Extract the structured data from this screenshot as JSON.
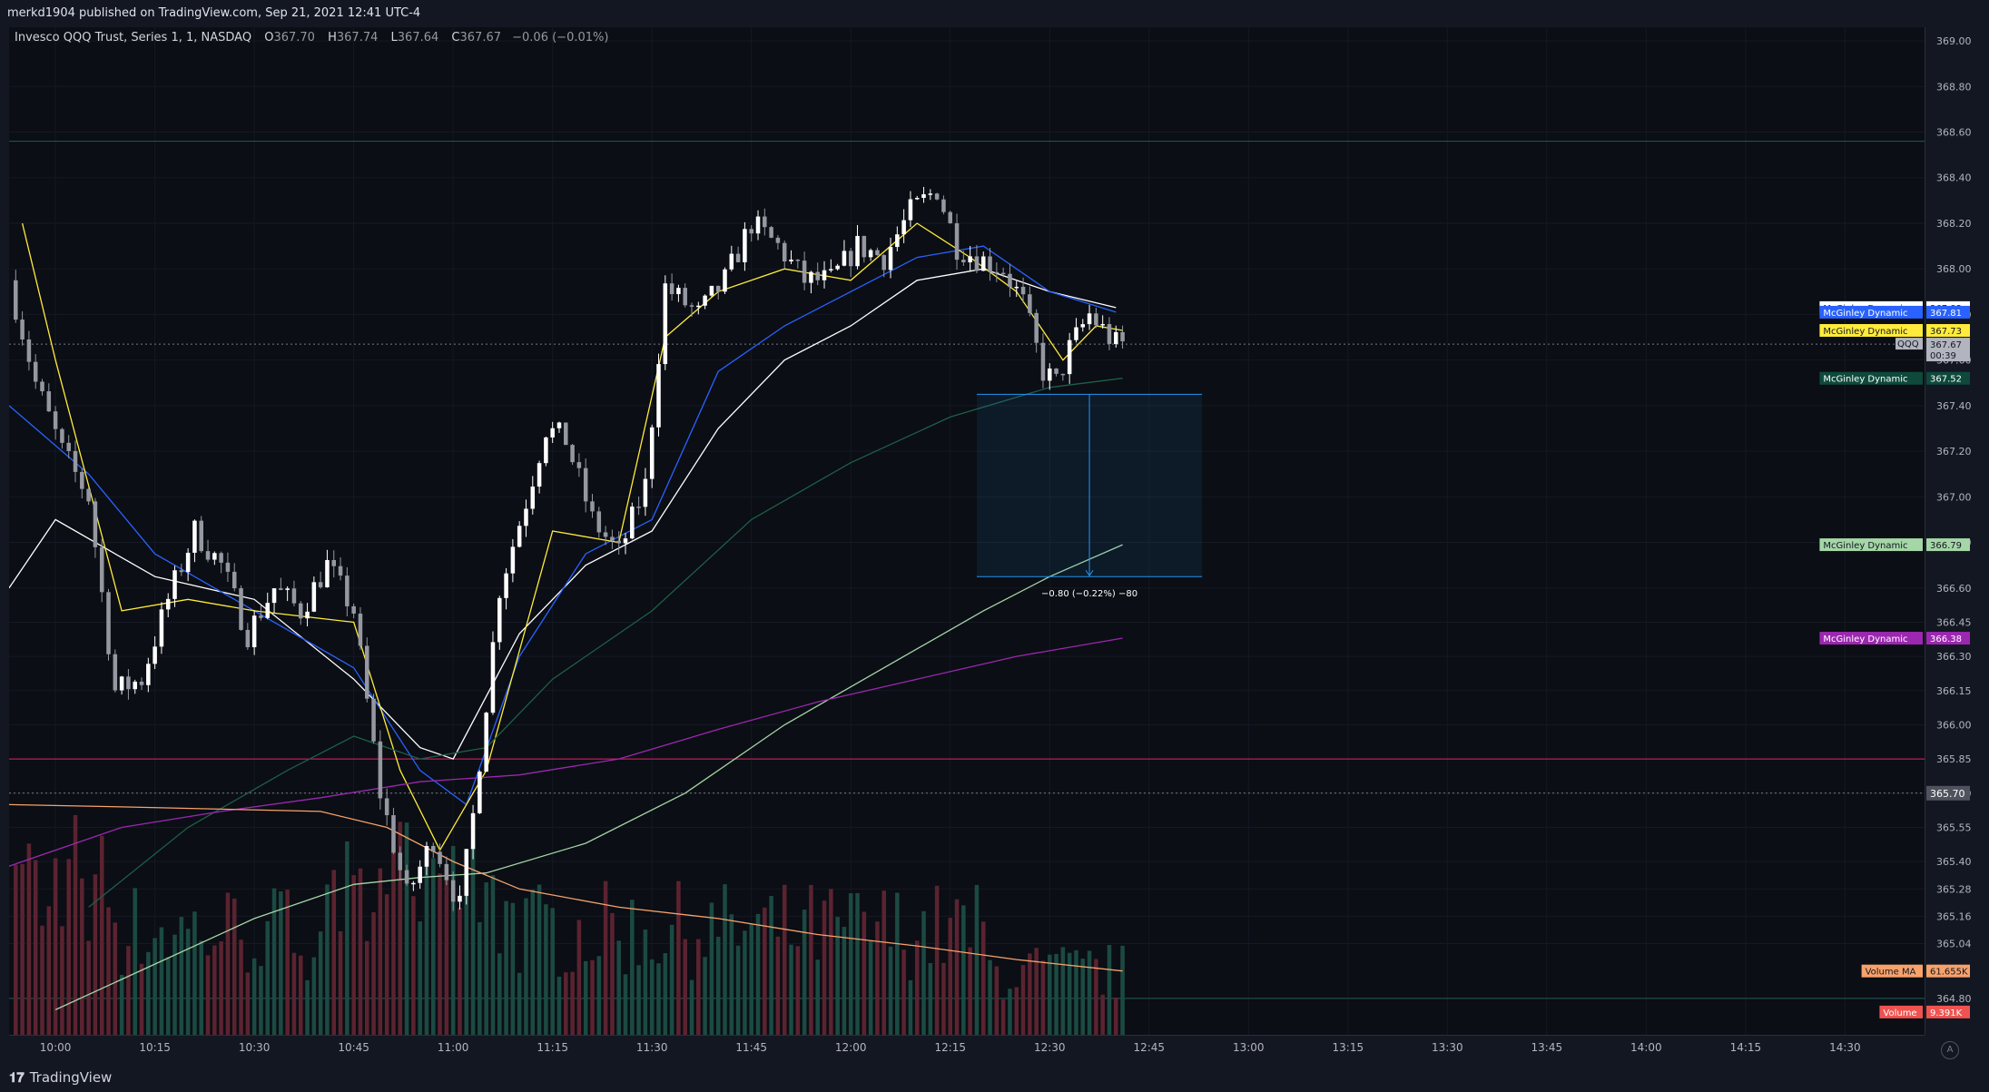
{
  "header": {
    "published": "merkd1904 published on TradingView.com, Sep 21, 2021 12:41 UTC-4"
  },
  "legend": {
    "symbol": "Invesco QQQ Trust, Series 1, 1, NASDAQ",
    "o_label": "O",
    "o_value": "367.70",
    "h_label": "H",
    "h_value": "367.74",
    "l_label": "L",
    "l_value": "367.64",
    "c_label": "C",
    "c_value": "367.67",
    "change": "−0.06 (−0.01%)"
  },
  "footer": {
    "brand": "TradingView",
    "auto_label": "A"
  },
  "colors": {
    "bg": "#0b0e14",
    "up": "#ffffff",
    "down": "#9598a1",
    "vol_up": "#26a69a",
    "vol_down": "#ef5350"
  },
  "chart_data": {
    "type": "candlestick",
    "title": "",
    "timeframe": "1 minute",
    "yaxis": {
      "min": 364.64,
      "max": 369.06,
      "ticks": [
        "369.00",
        "368.80",
        "368.60",
        "368.40",
        "368.20",
        "368.00",
        "367.80",
        "367.60",
        "367.40",
        "367.20",
        "367.00",
        "366.80",
        "366.60",
        "366.45",
        "366.30",
        "366.15",
        "366.00",
        "365.85",
        "365.70",
        "365.55",
        "365.40",
        "365.28",
        "365.16",
        "365.04",
        "364.80"
      ]
    },
    "xaxis": {
      "start": "09:53",
      "end": "14:42",
      "ticks": [
        "10:00",
        "10:15",
        "10:30",
        "10:45",
        "11:00",
        "11:15",
        "11:30",
        "11:45",
        "12:00",
        "12:15",
        "12:30",
        "12:45",
        "13:00",
        "13:15",
        "13:30",
        "13:45",
        "14:00",
        "14:15",
        "14:30"
      ]
    },
    "horizontal_lines": [
      {
        "price": 368.56,
        "color": "#1f5c54"
      },
      {
        "price": 365.85,
        "color": "#e91e63"
      },
      {
        "price": 364.8,
        "color": "#1f5c54"
      },
      {
        "price": 367.67,
        "style": "dotted",
        "color": "#787b86"
      },
      {
        "price": 365.7,
        "style": "dotted",
        "color": "#787b86"
      }
    ],
    "anchors": [
      [
        "09:54",
        367.95
      ],
      [
        "09:58",
        367.5
      ],
      [
        "10:02",
        367.2
      ],
      [
        "10:06",
        367.0
      ],
      [
        "10:10",
        366.15
      ],
      [
        "10:14",
        366.2
      ],
      [
        "10:18",
        366.55
      ],
      [
        "10:22",
        366.85
      ],
      [
        "10:26",
        366.7
      ],
      [
        "10:30",
        366.4
      ],
      [
        "10:34",
        366.6
      ],
      [
        "10:38",
        366.5
      ],
      [
        "10:42",
        366.7
      ],
      [
        "10:46",
        366.5
      ],
      [
        "10:50",
        365.7
      ],
      [
        "10:54",
        365.25
      ],
      [
        "10:58",
        365.5
      ],
      [
        "11:02",
        365.2
      ],
      [
        "11:04",
        365.6
      ],
      [
        "11:08",
        366.6
      ],
      [
        "11:12",
        366.98
      ],
      [
        "11:15",
        367.3
      ],
      [
        "11:18",
        367.25
      ],
      [
        "11:22",
        366.9
      ],
      [
        "11:26",
        366.75
      ],
      [
        "11:30",
        367.05
      ],
      [
        "11:33",
        367.92
      ],
      [
        "11:38",
        367.8
      ],
      [
        "11:42",
        367.95
      ],
      [
        "11:46",
        368.2
      ],
      [
        "11:50",
        368.1
      ],
      [
        "11:54",
        367.95
      ],
      [
        "11:58",
        367.95
      ],
      [
        "12:02",
        368.1
      ],
      [
        "12:06",
        368.05
      ],
      [
        "12:10",
        368.25
      ],
      [
        "12:14",
        368.35
      ],
      [
        "12:17",
        368.1
      ],
      [
        "12:20",
        368.05
      ],
      [
        "12:24",
        368.0
      ],
      [
        "12:27",
        367.85
      ],
      [
        "12:30",
        367.55
      ],
      [
        "12:32",
        367.5
      ],
      [
        "12:34",
        367.65
      ],
      [
        "12:37",
        367.8
      ],
      [
        "12:40",
        367.7
      ],
      [
        "12:41",
        367.67
      ]
    ],
    "series": [
      {
        "name": "McGinley Dynamic",
        "color": "#ffffff",
        "label_bg": "#ffffff",
        "label_fg": "#131722",
        "last": "367.83",
        "points": [
          [
            "09:53",
            366.6
          ],
          [
            "10:00",
            366.9
          ],
          [
            "10:15",
            366.65
          ],
          [
            "10:30",
            366.55
          ],
          [
            "10:45",
            366.2
          ],
          [
            "10:55",
            365.9
          ],
          [
            "11:00",
            365.85
          ],
          [
            "11:10",
            366.4
          ],
          [
            "11:20",
            366.7
          ],
          [
            "11:30",
            366.85
          ],
          [
            "11:40",
            367.3
          ],
          [
            "11:50",
            367.6
          ],
          [
            "12:00",
            367.75
          ],
          [
            "12:10",
            367.95
          ],
          [
            "12:20",
            368.0
          ],
          [
            "12:30",
            367.9
          ],
          [
            "12:40",
            367.83
          ]
        ]
      },
      {
        "name": "McGinley Dynamic",
        "color": "#2962ff",
        "label_bg": "#2962ff",
        "label_fg": "#ffffff",
        "last": "367.81",
        "points": [
          [
            "09:53",
            367.4
          ],
          [
            "10:05",
            367.1
          ],
          [
            "10:15",
            366.75
          ],
          [
            "10:30",
            366.5
          ],
          [
            "10:45",
            366.25
          ],
          [
            "10:55",
            365.8
          ],
          [
            "11:02",
            365.65
          ],
          [
            "11:10",
            366.3
          ],
          [
            "11:20",
            366.75
          ],
          [
            "11:30",
            366.9
          ],
          [
            "11:40",
            367.55
          ],
          [
            "11:50",
            367.75
          ],
          [
            "12:00",
            367.9
          ],
          [
            "12:10",
            368.05
          ],
          [
            "12:20",
            368.1
          ],
          [
            "12:30",
            367.9
          ],
          [
            "12:40",
            367.81
          ]
        ]
      },
      {
        "name": "McGinley Dynamic",
        "color": "#ffeb3b",
        "label_bg": "#ffeb3b",
        "label_fg": "#131722",
        "last": "367.73",
        "points": [
          [
            "09:55",
            368.2
          ],
          [
            "10:00",
            367.6
          ],
          [
            "10:10",
            366.5
          ],
          [
            "10:20",
            366.55
          ],
          [
            "10:30",
            366.5
          ],
          [
            "10:45",
            366.45
          ],
          [
            "10:52",
            365.8
          ],
          [
            "10:58",
            365.45
          ],
          [
            "11:05",
            365.8
          ],
          [
            "11:15",
            366.85
          ],
          [
            "11:25",
            366.8
          ],
          [
            "11:32",
            367.7
          ],
          [
            "11:40",
            367.9
          ],
          [
            "11:50",
            368.0
          ],
          [
            "12:00",
            367.95
          ],
          [
            "12:10",
            368.2
          ],
          [
            "12:18",
            368.05
          ],
          [
            "12:25",
            367.9
          ],
          [
            "12:32",
            367.6
          ],
          [
            "12:37",
            367.75
          ],
          [
            "12:41",
            367.73
          ]
        ]
      },
      {
        "name": "McGinley Dynamic",
        "color": "#1e5e48",
        "label_bg": "#0e4a3c",
        "label_fg": "#ffffff",
        "last": "367.52",
        "points": [
          [
            "10:05",
            365.2
          ],
          [
            "10:20",
            365.55
          ],
          [
            "10:35",
            365.8
          ],
          [
            "10:45",
            365.95
          ],
          [
            "10:55",
            365.85
          ],
          [
            "11:05",
            365.9
          ],
          [
            "11:15",
            366.2
          ],
          [
            "11:30",
            366.5
          ],
          [
            "11:45",
            366.9
          ],
          [
            "12:00",
            367.15
          ],
          [
            "12:15",
            367.35
          ],
          [
            "12:30",
            367.48
          ],
          [
            "12:41",
            367.52
          ]
        ]
      },
      {
        "name": "McGinley Dynamic",
        "color": "#a5d6a7",
        "label_bg": "#a5d6a7",
        "label_fg": "#131722",
        "last": "366.79",
        "points": [
          [
            "10:00",
            364.75
          ],
          [
            "10:15",
            364.95
          ],
          [
            "10:30",
            365.15
          ],
          [
            "10:45",
            365.3
          ],
          [
            "10:55",
            365.33
          ],
          [
            "11:05",
            365.35
          ],
          [
            "11:20",
            365.48
          ],
          [
            "11:35",
            365.7
          ],
          [
            "11:50",
            366.0
          ],
          [
            "12:05",
            366.25
          ],
          [
            "12:20",
            366.5
          ],
          [
            "12:30",
            366.65
          ],
          [
            "12:41",
            366.79
          ]
        ]
      },
      {
        "name": "McGinley Dynamic",
        "color": "#9c27b0",
        "label_bg": "#9c27b0",
        "label_fg": "#ffffff",
        "last": "366.38",
        "points": [
          [
            "09:53",
            365.38
          ],
          [
            "10:10",
            365.55
          ],
          [
            "10:25",
            365.62
          ],
          [
            "10:40",
            365.68
          ],
          [
            "10:55",
            365.75
          ],
          [
            "11:10",
            365.78
          ],
          [
            "11:25",
            365.85
          ],
          [
            "11:40",
            365.98
          ],
          [
            "11:55",
            366.1
          ],
          [
            "12:10",
            366.2
          ],
          [
            "12:25",
            366.3
          ],
          [
            "12:41",
            366.38
          ]
        ]
      },
      {
        "name": "Volume MA",
        "color": "#f7a26b",
        "label_bg": "#f7a26b",
        "label_fg": "#131722",
        "last": "61.655K",
        "points": [
          [
            "09:53",
            365.65
          ],
          [
            "10:10",
            365.64
          ],
          [
            "10:25",
            365.63
          ],
          [
            "10:40",
            365.62
          ],
          [
            "10:50",
            365.55
          ],
          [
            "11:00",
            365.4
          ],
          [
            "11:10",
            365.28
          ],
          [
            "11:25",
            365.2
          ],
          [
            "11:40",
            365.15
          ],
          [
            "11:55",
            365.08
          ],
          [
            "12:10",
            365.03
          ],
          [
            "12:25",
            364.97
          ],
          [
            "12:41",
            364.92
          ]
        ]
      }
    ],
    "volume": {
      "name": "Volume",
      "last": "9.391K",
      "label_bg": "#ef5350",
      "label_fg": "#ffffff"
    },
    "symbol_label": {
      "name": "QQQ",
      "price": "367.67",
      "countdown": "00:39",
      "bg": "#b2b5be"
    },
    "crosshair_label": {
      "price": "365.70"
    },
    "measure": {
      "start_time": "12:19",
      "end_time": "12:53",
      "top": 367.45,
      "bottom": 366.65,
      "label": "−0.80 (−0.22%) −80"
    }
  }
}
